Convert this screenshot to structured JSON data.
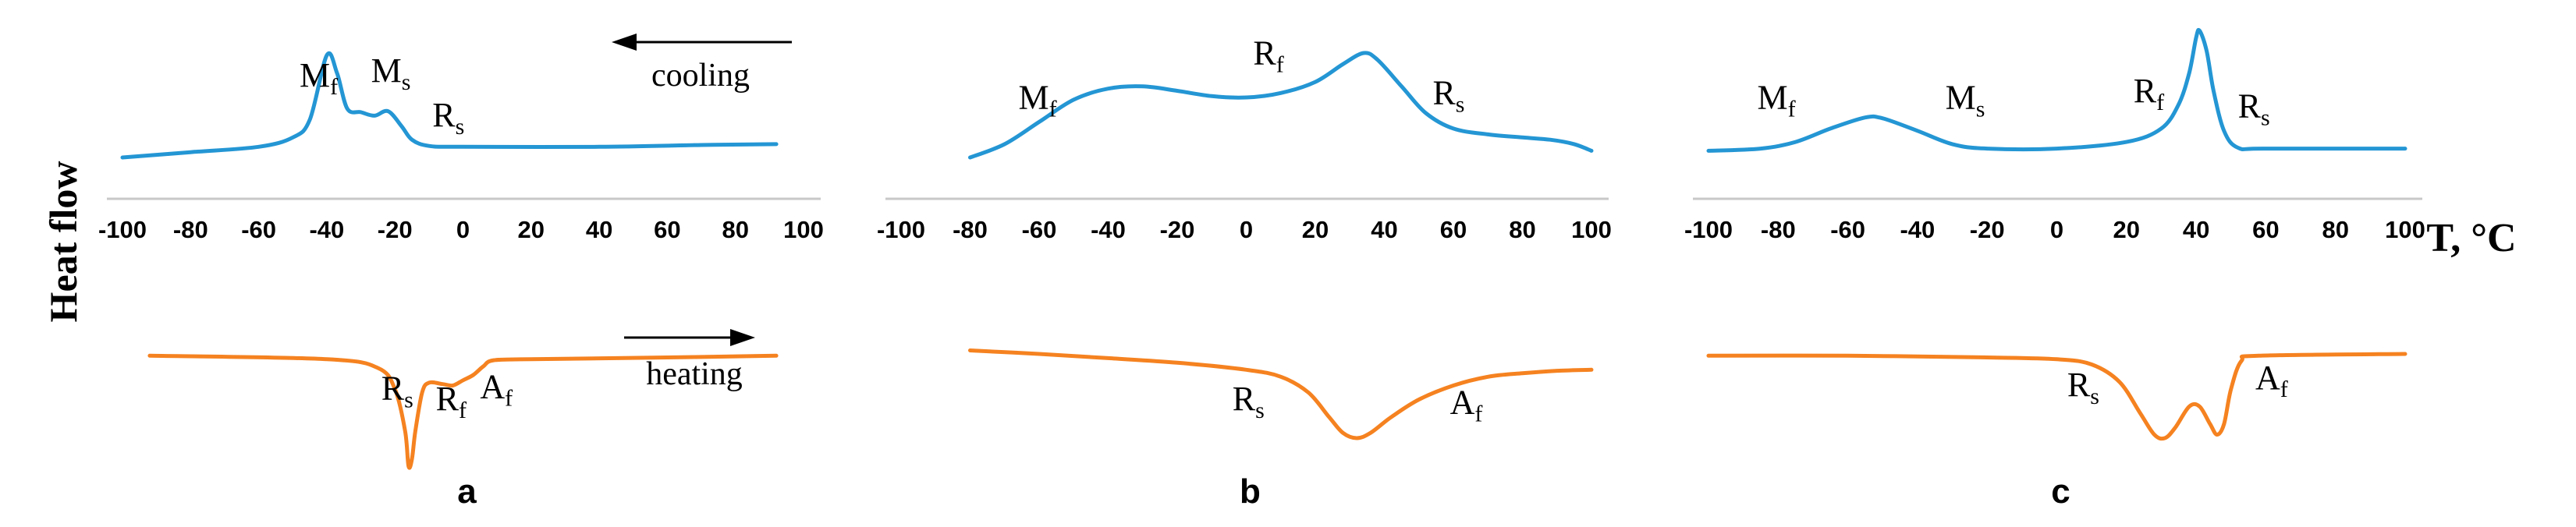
{
  "ylabel": "Heat flow",
  "xunit": "T, °C",
  "colors": {
    "cooling": "#2496d4",
    "heating": "#f58220"
  },
  "chart_data": [
    {
      "type": "line",
      "panel": "a",
      "xlim": [
        -100,
        100
      ],
      "xticks": [
        -100,
        -80,
        -60,
        -40,
        -20,
        0,
        20,
        40,
        60,
        80,
        100
      ],
      "cooling_word": "cooling",
      "heating_word": "heating",
      "series": [
        {
          "name": "cooling",
          "points": [
            [
              -100,
              -1.0
            ],
            [
              -80,
              -0.88
            ],
            [
              -60,
              -0.76
            ],
            [
              -50,
              -0.55
            ],
            [
              -45,
              -0.15
            ],
            [
              -40,
              1.3
            ],
            [
              -37,
              0.9
            ],
            [
              -34,
              0.1
            ],
            [
              -30,
              0.02
            ],
            [
              -26,
              -0.06
            ],
            [
              -22,
              0.04
            ],
            [
              -18,
              -0.3
            ],
            [
              -15,
              -0.6
            ],
            [
              -10,
              -0.74
            ],
            [
              0,
              -0.76
            ],
            [
              40,
              -0.76
            ],
            [
              70,
              -0.72
            ],
            [
              92,
              -0.7
            ]
          ]
        },
        {
          "name": "heating",
          "points": [
            [
              -92,
              -0.85
            ],
            [
              -40,
              -0.95
            ],
            [
              -25,
              -1.2
            ],
            [
              -20,
              -1.8
            ],
            [
              -17,
              -3.0
            ],
            [
              -16,
              -4.0
            ],
            [
              -15,
              -3.8
            ],
            [
              -14,
              -3.0
            ],
            [
              -12,
              -1.9
            ],
            [
              -10,
              -1.62
            ],
            [
              -6,
              -1.66
            ],
            [
              -3,
              -1.7
            ],
            [
              0,
              -1.55
            ],
            [
              3,
              -1.4
            ],
            [
              6,
              -1.15
            ],
            [
              9,
              -0.98
            ],
            [
              20,
              -0.95
            ],
            [
              60,
              -0.9
            ],
            [
              92,
              -0.85
            ]
          ]
        }
      ],
      "annotations": [
        {
          "key": "M",
          "sub": "f",
          "x": -48,
          "y": 0.6
        },
        {
          "key": "M",
          "sub": "s",
          "x": -27,
          "y": 0.7
        },
        {
          "key": "R",
          "sub": "s",
          "x": -9,
          "y": -0.3
        },
        {
          "key": "R",
          "sub": "s",
          "x": -24,
          "y": -2.1
        },
        {
          "key": "R",
          "sub": "f",
          "x": -8,
          "y": -2.4
        },
        {
          "key": "A",
          "sub": "f",
          "x": 5,
          "y": -2.05
        }
      ]
    },
    {
      "type": "line",
      "panel": "b",
      "xlim": [
        -100,
        100
      ],
      "xticks": [
        -100,
        -80,
        -60,
        -40,
        -20,
        0,
        20,
        40,
        60,
        80,
        100
      ],
      "series": [
        {
          "name": "cooling",
          "points": [
            [
              -80,
              -1.0
            ],
            [
              -70,
              -0.7
            ],
            [
              -60,
              -0.2
            ],
            [
              -50,
              0.3
            ],
            [
              -40,
              0.55
            ],
            [
              -30,
              0.6
            ],
            [
              -20,
              0.5
            ],
            [
              -10,
              0.38
            ],
            [
              0,
              0.35
            ],
            [
              10,
              0.45
            ],
            [
              20,
              0.7
            ],
            [
              28,
              1.1
            ],
            [
              34,
              1.35
            ],
            [
              38,
              1.2
            ],
            [
              45,
              0.6
            ],
            [
              52,
              0.0
            ],
            [
              60,
              -0.35
            ],
            [
              70,
              -0.48
            ],
            [
              80,
              -0.55
            ],
            [
              88,
              -0.6
            ],
            [
              95,
              -0.7
            ],
            [
              100,
              -0.85
            ]
          ]
        },
        {
          "name": "heating",
          "points": [
            [
              -80,
              -0.7
            ],
            [
              -60,
              -0.8
            ],
            [
              -40,
              -0.92
            ],
            [
              -20,
              -1.05
            ],
            [
              0,
              -1.25
            ],
            [
              10,
              -1.45
            ],
            [
              18,
              -1.9
            ],
            [
              24,
              -2.6
            ],
            [
              28,
              -3.05
            ],
            [
              32,
              -3.2
            ],
            [
              36,
              -3.05
            ],
            [
              42,
              -2.6
            ],
            [
              50,
              -2.1
            ],
            [
              60,
              -1.7
            ],
            [
              70,
              -1.45
            ],
            [
              80,
              -1.35
            ],
            [
              90,
              -1.28
            ],
            [
              100,
              -1.25
            ]
          ]
        }
      ],
      "annotations": [
        {
          "key": "M",
          "sub": "f",
          "x": -66,
          "y": 0.1
        },
        {
          "key": "R",
          "sub": "f",
          "x": 2,
          "y": 1.1
        },
        {
          "key": "R",
          "sub": "s",
          "x": 54,
          "y": 0.2
        },
        {
          "key": "R",
          "sub": "s",
          "x": -4,
          "y": -2.4
        },
        {
          "key": "A",
          "sub": "f",
          "x": 59,
          "y": -2.5
        }
      ]
    },
    {
      "type": "line",
      "panel": "c",
      "xlim": [
        -100,
        100
      ],
      "xticks": [
        -100,
        -80,
        -60,
        -40,
        -20,
        0,
        20,
        40,
        60,
        80,
        100
      ],
      "series": [
        {
          "name": "cooling",
          "points": [
            [
              -100,
              -0.85
            ],
            [
              -85,
              -0.8
            ],
            [
              -75,
              -0.65
            ],
            [
              -65,
              -0.35
            ],
            [
              -55,
              -0.1
            ],
            [
              -50,
              -0.12
            ],
            [
              -40,
              -0.4
            ],
            [
              -30,
              -0.7
            ],
            [
              -20,
              -0.8
            ],
            [
              0,
              -0.8
            ],
            [
              20,
              -0.65
            ],
            [
              30,
              -0.35
            ],
            [
              35,
              0.2
            ],
            [
              38,
              0.9
            ],
            [
              40,
              1.7
            ],
            [
              41,
              1.85
            ],
            [
              43,
              1.4
            ],
            [
              45,
              0.5
            ],
            [
              48,
              -0.4
            ],
            [
              52,
              -0.78
            ],
            [
              60,
              -0.8
            ],
            [
              100,
              -0.8
            ]
          ]
        },
        {
          "name": "heating",
          "points": [
            [
              -100,
              -0.85
            ],
            [
              -60,
              -0.85
            ],
            [
              -20,
              -0.9
            ],
            [
              0,
              -0.95
            ],
            [
              10,
              -1.1
            ],
            [
              18,
              -1.6
            ],
            [
              24,
              -2.5
            ],
            [
              28,
              -3.1
            ],
            [
              31,
              -3.2
            ],
            [
              34,
              -2.9
            ],
            [
              38,
              -2.3
            ],
            [
              41,
              -2.3
            ],
            [
              44,
              -2.8
            ],
            [
              46,
              -3.1
            ],
            [
              48,
              -2.8
            ],
            [
              50,
              -1.8
            ],
            [
              53,
              -1.0
            ],
            [
              58,
              -0.85
            ],
            [
              100,
              -0.8
            ]
          ]
        }
      ],
      "annotations": [
        {
          "key": "M",
          "sub": "f",
          "x": -86,
          "y": 0.1
        },
        {
          "key": "M",
          "sub": "s",
          "x": -32,
          "y": 0.1
        },
        {
          "key": "R",
          "sub": "f",
          "x": 22,
          "y": 0.25
        },
        {
          "key": "R",
          "sub": "s",
          "x": 52,
          "y": -0.1
        },
        {
          "key": "R",
          "sub": "s",
          "x": 3,
          "y": -2.0
        },
        {
          "key": "A",
          "sub": "f",
          "x": 57,
          "y": -1.8
        }
      ]
    }
  ]
}
